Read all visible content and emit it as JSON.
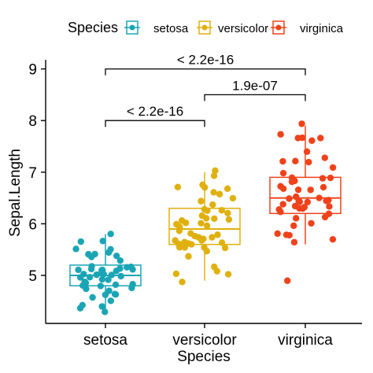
{
  "chart_data": {
    "type": "boxplot",
    "xlabel": "Species",
    "ylabel": "Sepal.Length",
    "categories": [
      "setosa",
      "versicolor",
      "virginica"
    ],
    "ylim": [
      4.1,
      9.2
    ],
    "yticks": [
      5,
      6,
      7,
      8,
      9
    ],
    "grid": false,
    "legend": {
      "title": "Species",
      "position": "top"
    },
    "series": [
      {
        "name": "setosa",
        "color": "#1AA5B5",
        "box": {
          "min": 4.3,
          "q1": 4.8,
          "median": 5.0,
          "q3": 5.2,
          "max": 5.8
        },
        "points": [
          4.3,
          4.4,
          4.4,
          4.4,
          4.5,
          4.6,
          4.6,
          4.6,
          4.6,
          4.7,
          4.7,
          4.8,
          4.8,
          4.8,
          4.8,
          4.8,
          4.9,
          4.9,
          4.9,
          4.9,
          5.0,
          5.0,
          5.0,
          5.0,
          5.0,
          5.0,
          5.0,
          5.0,
          5.1,
          5.1,
          5.1,
          5.1,
          5.1,
          5.1,
          5.1,
          5.1,
          5.2,
          5.2,
          5.2,
          5.3,
          5.4,
          5.4,
          5.4,
          5.4,
          5.4,
          5.5,
          5.5,
          5.7,
          5.7,
          5.8
        ]
      },
      {
        "name": "versicolor",
        "color": "#E0B00C",
        "box": {
          "min": 4.9,
          "q1": 5.6,
          "median": 5.9,
          "q3": 6.3,
          "max": 7.0
        },
        "points": [
          4.9,
          5.0,
          5.0,
          5.1,
          5.2,
          5.4,
          5.5,
          5.5,
          5.5,
          5.5,
          5.5,
          5.6,
          5.6,
          5.6,
          5.6,
          5.6,
          5.7,
          5.7,
          5.7,
          5.7,
          5.7,
          5.8,
          5.8,
          5.8,
          5.9,
          5.9,
          6.0,
          6.0,
          6.0,
          6.0,
          6.1,
          6.1,
          6.1,
          6.1,
          6.2,
          6.2,
          6.3,
          6.3,
          6.3,
          6.4,
          6.4,
          6.5,
          6.6,
          6.6,
          6.7,
          6.7,
          6.7,
          6.8,
          6.9,
          7.0
        ]
      },
      {
        "name": "virginica",
        "color": "#F0421A",
        "box": {
          "min": 5.6,
          "q1": 6.2,
          "median": 6.5,
          "q3": 6.9,
          "max": 7.9
        },
        "points": [
          4.9,
          5.6,
          5.7,
          5.8,
          5.8,
          5.8,
          6.0,
          6.0,
          6.1,
          6.1,
          6.2,
          6.2,
          6.3,
          6.3,
          6.3,
          6.3,
          6.3,
          6.3,
          6.4,
          6.4,
          6.4,
          6.4,
          6.4,
          6.5,
          6.5,
          6.5,
          6.5,
          6.7,
          6.7,
          6.7,
          6.7,
          6.7,
          6.8,
          6.8,
          6.9,
          6.9,
          6.9,
          7.0,
          7.1,
          7.2,
          7.2,
          7.2,
          7.3,
          7.4,
          7.6,
          7.7,
          7.7,
          7.7,
          7.7,
          7.9
        ]
      }
    ],
    "comparisons": [
      {
        "from": "setosa",
        "to": "virginica",
        "label": "< 2.2e-16",
        "y": 9.0
      },
      {
        "from": "versicolor",
        "to": "virginica",
        "label": "1.9e-07",
        "y": 8.5
      },
      {
        "from": "setosa",
        "to": "versicolor",
        "label": "< 2.2e-16",
        "y": 8.0
      }
    ]
  }
}
